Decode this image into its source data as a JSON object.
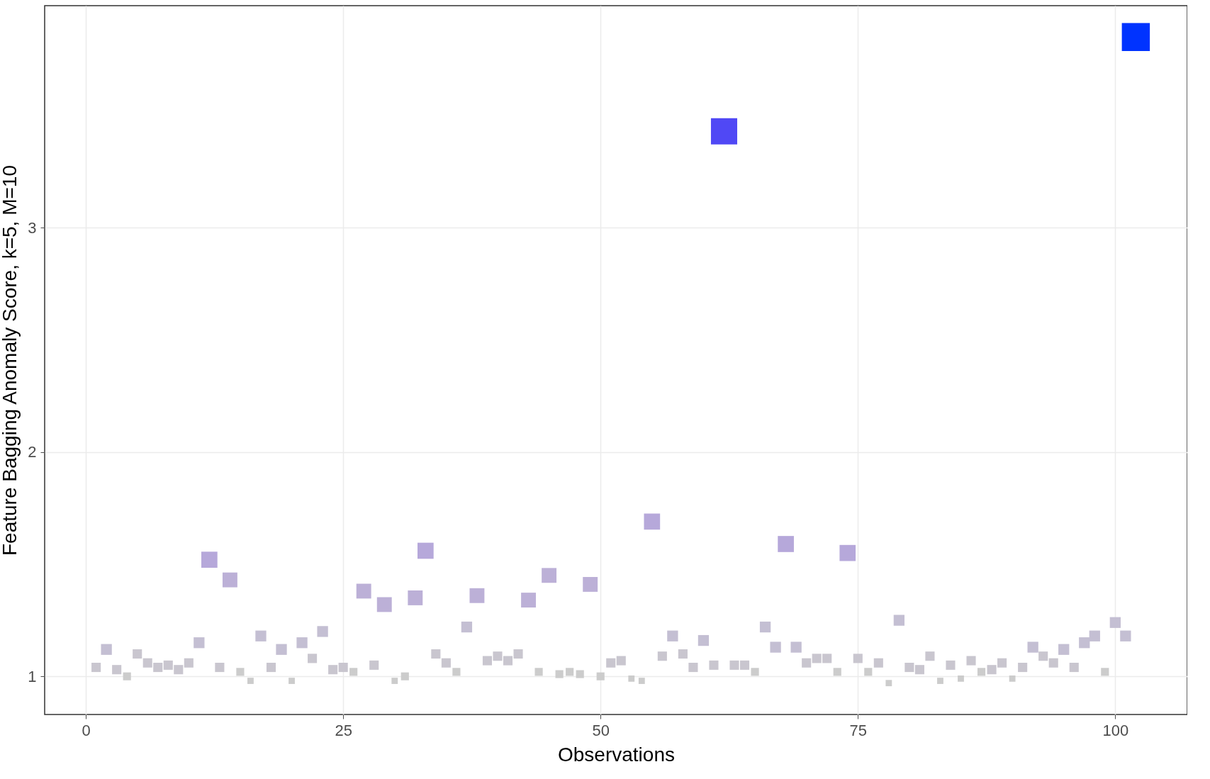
{
  "chart_data": {
    "type": "bubble",
    "xlabel": "Observations",
    "ylabel": "Feature Bagging Anomaly Score, k=5, M=10",
    "x": [
      1,
      2,
      3,
      4,
      5,
      6,
      7,
      8,
      9,
      10,
      11,
      12,
      13,
      14,
      15,
      16,
      17,
      18,
      19,
      20,
      21,
      22,
      23,
      24,
      25,
      26,
      27,
      28,
      29,
      30,
      31,
      32,
      33,
      34,
      35,
      36,
      37,
      38,
      39,
      40,
      41,
      42,
      43,
      44,
      45,
      46,
      47,
      48,
      49,
      50,
      51,
      52,
      53,
      54,
      55,
      56,
      57,
      58,
      59,
      60,
      61,
      62,
      63,
      64,
      65,
      66,
      67,
      68,
      69,
      70,
      71,
      72,
      73,
      74,
      75,
      76,
      77,
      78,
      79,
      80,
      81,
      82,
      83,
      84,
      85,
      86,
      87,
      88,
      89,
      90,
      91,
      92,
      93,
      94,
      95,
      96,
      97,
      98,
      99,
      100,
      101,
      102
    ],
    "values": [
      1.04,
      1.12,
      1.03,
      1.0,
      1.1,
      1.06,
      1.04,
      1.05,
      1.03,
      1.06,
      1.15,
      1.52,
      1.04,
      1.43,
      1.02,
      0.98,
      1.18,
      1.04,
      1.12,
      0.98,
      1.15,
      1.08,
      1.2,
      1.03,
      1.04,
      1.02,
      1.38,
      1.05,
      1.32,
      0.98,
      1.0,
      1.35,
      1.56,
      1.1,
      1.06,
      1.02,
      1.22,
      1.36,
      1.07,
      1.09,
      1.07,
      1.1,
      1.34,
      1.02,
      1.45,
      1.01,
      1.02,
      1.01,
      1.41,
      1.0,
      1.06,
      1.07,
      0.99,
      0.98,
      1.69,
      1.09,
      1.18,
      1.1,
      1.04,
      1.16,
      1.05,
      3.43,
      1.05,
      1.05,
      1.02,
      1.22,
      1.13,
      1.59,
      1.13,
      1.06,
      1.08,
      1.08,
      1.02,
      1.55,
      1.08,
      1.02,
      1.06,
      0.97,
      1.25,
      1.04,
      1.03,
      1.09,
      0.98,
      1.05,
      0.99,
      1.07,
      1.02,
      1.03,
      1.06,
      0.99,
      1.04,
      1.13,
      1.09,
      1.06,
      1.12,
      1.04,
      1.15,
      1.18,
      1.02,
      1.24,
      1.18,
      3.85
    ],
    "sizes": [
      0.11,
      0.15,
      0.11,
      0.08,
      0.11,
      0.11,
      0.11,
      0.11,
      0.11,
      0.11,
      0.15,
      0.33,
      0.11,
      0.28,
      0.08,
      0.05,
      0.15,
      0.11,
      0.15,
      0.05,
      0.15,
      0.11,
      0.15,
      0.11,
      0.11,
      0.08,
      0.28,
      0.11,
      0.28,
      0.05,
      0.08,
      0.28,
      0.33,
      0.11,
      0.11,
      0.08,
      0.15,
      0.28,
      0.11,
      0.11,
      0.11,
      0.11,
      0.28,
      0.08,
      0.28,
      0.08,
      0.08,
      0.08,
      0.28,
      0.08,
      0.11,
      0.11,
      0.05,
      0.05,
      0.33,
      0.11,
      0.15,
      0.11,
      0.11,
      0.15,
      0.11,
      0.88,
      0.11,
      0.11,
      0.08,
      0.15,
      0.15,
      0.33,
      0.15,
      0.11,
      0.11,
      0.11,
      0.08,
      0.33,
      0.11,
      0.08,
      0.11,
      0.05,
      0.15,
      0.11,
      0.11,
      0.11,
      0.05,
      0.11,
      0.05,
      0.11,
      0.08,
      0.11,
      0.11,
      0.05,
      0.11,
      0.15,
      0.11,
      0.11,
      0.15,
      0.11,
      0.15,
      0.15,
      0.08,
      0.15,
      0.15,
      1
    ],
    "colors": [
      "#c9c6cf",
      "#c4bfd3",
      "#c9c6cf",
      "#cccccc",
      "#c9c6cf",
      "#c9c6cf",
      "#c9c6cf",
      "#c9c6cf",
      "#c9c6cf",
      "#c9c6cf",
      "#c4bfd3",
      "#b6a8da",
      "#c9c6cf",
      "#bcb0d7",
      "#cccccc",
      "#cccccc",
      "#c4bfd3",
      "#c9c6cf",
      "#c4bfd3",
      "#cccccc",
      "#c4bfd3",
      "#c9c6cf",
      "#c4bfd3",
      "#c9c6cf",
      "#c9c6cf",
      "#cccccc",
      "#bcb0d7",
      "#c9c6cf",
      "#bcb0d7",
      "#cccccc",
      "#cccccc",
      "#bcb0d7",
      "#b6a8da",
      "#c9c6cf",
      "#c9c6cf",
      "#cccccc",
      "#c4bfd3",
      "#bcb0d7",
      "#c9c6cf",
      "#c9c6cf",
      "#c9c6cf",
      "#c9c6cf",
      "#bcb0d7",
      "#cccccc",
      "#bcb0d7",
      "#cccccc",
      "#cccccc",
      "#cccccc",
      "#bcb0d7",
      "#cccccc",
      "#c9c6cf",
      "#c9c6cf",
      "#cccccc",
      "#cccccc",
      "#b6a8da",
      "#c9c6cf",
      "#c4bfd3",
      "#c9c6cf",
      "#c9c6cf",
      "#c4bfd3",
      "#c9c6cf",
      "#5048f5",
      "#c9c6cf",
      "#c9c6cf",
      "#cccccc",
      "#c4bfd3",
      "#c4bfd3",
      "#b6a8da",
      "#c4bfd3",
      "#c9c6cf",
      "#c9c6cf",
      "#c9c6cf",
      "#cccccc",
      "#b6a8da",
      "#c9c6cf",
      "#cccccc",
      "#c9c6cf",
      "#cccccc",
      "#c4bfd3",
      "#c9c6cf",
      "#c9c6cf",
      "#c9c6cf",
      "#cccccc",
      "#c9c6cf",
      "#cccccc",
      "#c9c6cf",
      "#cccccc",
      "#c9c6cf",
      "#c9c6cf",
      "#cccccc",
      "#c9c6cf",
      "#c4bfd3",
      "#c9c6cf",
      "#c9c6cf",
      "#c4bfd3",
      "#c9c6cf",
      "#c4bfd3",
      "#c4bfd3",
      "#cccccc",
      "#c4bfd3",
      "#c4bfd3",
      "#0033ff"
    ],
    "xlim": [
      -4,
      107
    ],
    "ylim": [
      0.83,
      3.99
    ],
    "xticks": [
      0,
      25,
      50,
      75,
      100
    ],
    "yticks": [
      1,
      2,
      3
    ],
    "marker": "square",
    "grid": true
  }
}
